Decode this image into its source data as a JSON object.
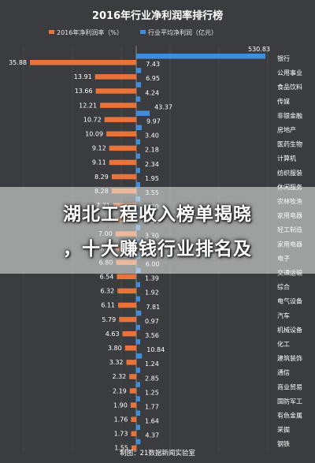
{
  "chart_data": {
    "type": "bar",
    "orientation": "horizontal-diverging",
    "title": "2016年行业净利润率排行榜",
    "legend": {
      "placement": "top"
    },
    "categories": [
      "银行",
      "公用事业",
      "食品饮料",
      "传媒",
      "非银金融",
      "房地产",
      "医药生物",
      "计算机",
      "纺织服装",
      "休闲服务",
      "农林牧渔",
      "家用电器",
      "轻工制造",
      "家用电器",
      "电子",
      "交通运输",
      "综合",
      "电气设备",
      "汽车",
      "机械设备",
      "化工",
      "建筑装饰",
      "通信",
      "商业贸易",
      "国防军工",
      "有色金属",
      "采掘",
      "钢铁"
    ],
    "series": [
      {
        "name": "2016年净利润率（%）",
        "color": "#e8743b",
        "values": [
          35.88,
          13.91,
          13.66,
          12.21,
          10.72,
          10.09,
          9.12,
          9.11,
          8.29,
          8.28,
          7.71,
          7.15,
          7.0,
          6.9,
          6.8,
          6.54,
          6.32,
          6.11,
          5.79,
          4.63,
          3.8,
          3.32,
          2.32,
          2.19,
          1.9,
          1.76,
          1.73,
          1.55
        ]
      },
      {
        "name": "行业平均净利润（亿元）",
        "color": "#3f8ddb",
        "values": [
          530.83,
          7.43,
          6.95,
          4.24,
          43.37,
          9.97,
          3.4,
          2.18,
          2.34,
          1.95,
          3.55,
          3.2,
          2.1,
          3.3,
          3.3,
          6.0,
          1.39,
          1.92,
          7.81,
          0.97,
          3.56,
          10.84,
          1.24,
          2.85,
          1.25,
          1.77,
          1.64,
          4.37
        ]
      }
    ],
    "grid": true
  },
  "headline": {
    "line1": "湖北工程收入榜单揭晓",
    "line2": "，十大赚钱行业排名及"
  },
  "footer": {
    "source": "制图：21数据新闻实验室"
  }
}
